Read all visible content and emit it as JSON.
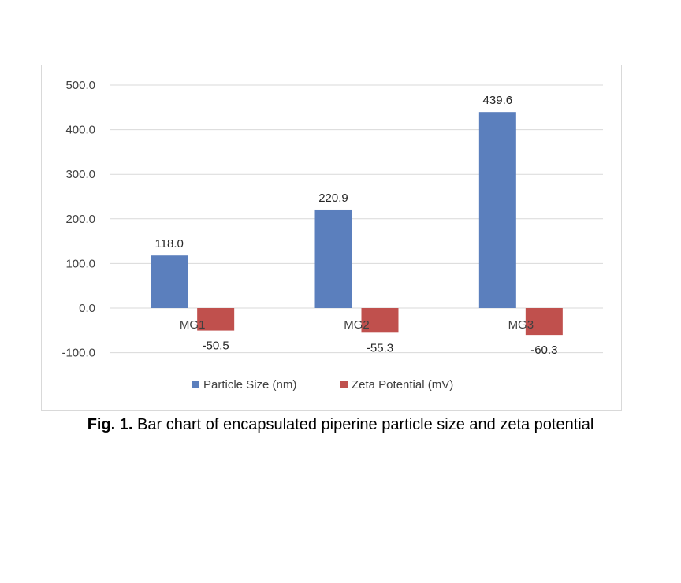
{
  "caption": {
    "lead": "Fig. 1.",
    "text": " Bar chart of encapsulated piperine particle size and zeta potential"
  },
  "chart_data": {
    "type": "bar",
    "categories": [
      "MG1",
      "MG2",
      "MG3"
    ],
    "series": [
      {
        "name": "Particle Size (nm)",
        "values": [
          118.0,
          220.9,
          439.6
        ],
        "color": "#5b7fbd"
      },
      {
        "name": "Zeta Potential (mV)",
        "values": [
          -50.5,
          -55.3,
          -60.3
        ],
        "color": "#c0504d"
      }
    ],
    "data_labels": [
      [
        "118.0",
        "220.9",
        "439.6"
      ],
      [
        "-50.5",
        "-55.3",
        "-60.3"
      ]
    ],
    "y_ticks": [
      "500.0",
      "400.0",
      "300.0",
      "200.0",
      "100.0",
      "0.0",
      "-100.0"
    ],
    "ylim": [
      -100,
      500
    ],
    "grid": true,
    "legend_position": "bottom",
    "title": "",
    "xlabel": "",
    "ylabel": ""
  }
}
